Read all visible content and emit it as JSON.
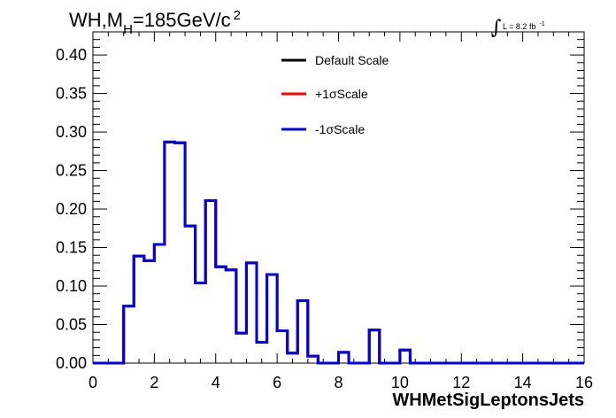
{
  "chart_data": {
    "type": "line",
    "title": {
      "prefix": "WH,M",
      "subscript": "H",
      "main": "=185GeV/c",
      "superscript": "2"
    },
    "lumi": {
      "integral_symbol": "∫",
      "text": "L = 8.2 fb",
      "superscript": "-1"
    },
    "xlabel": "WHMetSigLeptonsJets",
    "ylabel": "",
    "xlim": [
      0,
      16
    ],
    "ylim": [
      0,
      0.43
    ],
    "x_ticks": [
      "0",
      "2",
      "4",
      "6",
      "8",
      "10",
      "12",
      "14",
      "16"
    ],
    "y_ticks": [
      "0.00",
      "0.05",
      "0.10",
      "0.15",
      "0.20",
      "0.25",
      "0.30",
      "0.35",
      "0.40"
    ],
    "legend_position": "top-center",
    "bin_edges": [
      0,
      0.333,
      0.667,
      1.0,
      1.333,
      1.667,
      2.0,
      2.333,
      2.667,
      3.0,
      3.333,
      3.667,
      4.0,
      4.333,
      4.667,
      5.0,
      5.333,
      5.667,
      6.0,
      6.333,
      6.667,
      7.0,
      7.333,
      7.667,
      8.0,
      8.333,
      8.667,
      9.0,
      9.333,
      9.667,
      10.0,
      10.333,
      10.667,
      11.0,
      11.333,
      11.667,
      12.0,
      12.333,
      12.667,
      13.0,
      13.333,
      13.667,
      14.0,
      14.333,
      14.667,
      15.0,
      15.333,
      15.667,
      16.0
    ],
    "series": [
      {
        "name": "Default Scale",
        "color": "#000000",
        "values": [
          0,
          0,
          0,
          0.074,
          0.139,
          0.133,
          0.154,
          0.287,
          0.286,
          0.178,
          0.104,
          0.211,
          0.125,
          0.121,
          0.039,
          0.13,
          0.027,
          0.115,
          0.042,
          0.013,
          0.081,
          0.009,
          0,
          0,
          0.014,
          0,
          0,
          0.043,
          0,
          0,
          0.017,
          0,
          0,
          0,
          0,
          0,
          0,
          0,
          0,
          0,
          0,
          0,
          0,
          0,
          0,
          0,
          0,
          0
        ]
      },
      {
        "name": "+1σScale",
        "color": "#ff0000",
        "values": [
          0,
          0,
          0,
          0.074,
          0.139,
          0.133,
          0.154,
          0.287,
          0.286,
          0.178,
          0.104,
          0.211,
          0.125,
          0.121,
          0.039,
          0.13,
          0.027,
          0.115,
          0.042,
          0.013,
          0.081,
          0.009,
          0,
          0,
          0.014,
          0,
          0,
          0.043,
          0,
          0,
          0.017,
          0,
          0,
          0,
          0,
          0,
          0,
          0,
          0,
          0,
          0,
          0,
          0,
          0,
          0,
          0,
          0,
          0
        ]
      },
      {
        "name": "-1σScale",
        "color": "#0000e6",
        "values": [
          0,
          0,
          0,
          0.074,
          0.139,
          0.133,
          0.154,
          0.287,
          0.286,
          0.178,
          0.104,
          0.211,
          0.125,
          0.121,
          0.039,
          0.13,
          0.027,
          0.115,
          0.042,
          0.013,
          0.081,
          0.009,
          0,
          0,
          0.014,
          0,
          0,
          0.043,
          0,
          0,
          0.017,
          0,
          0,
          0,
          0,
          0,
          0,
          0,
          0,
          0,
          0,
          0,
          0,
          0,
          0,
          0,
          0,
          0
        ]
      }
    ]
  }
}
